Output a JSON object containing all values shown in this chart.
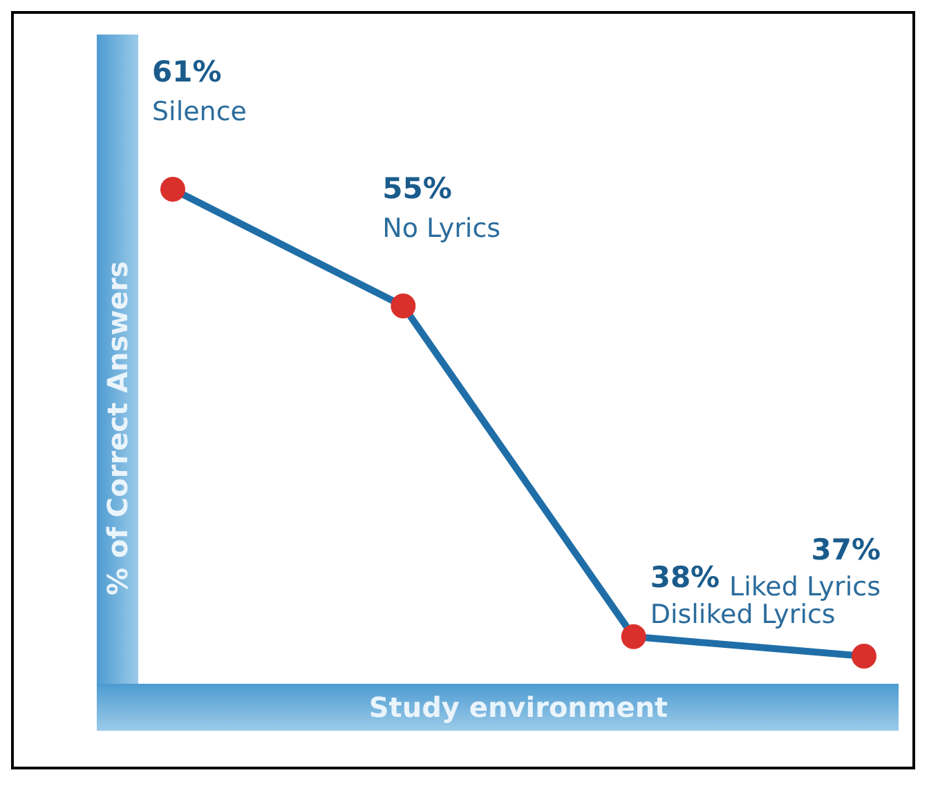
{
  "chart_data": {
    "type": "line",
    "xlabel": "Study environment",
    "ylabel": "% of Correct Answers",
    "categories": [
      "Silence",
      "No Lyrics",
      "Disliked Lyrics",
      "Liked Lyrics"
    ],
    "series": [
      {
        "color": "#1f6ea8",
        "values": [
          61,
          55,
          38,
          37
        ],
        "value_labels": [
          "61%",
          "55%",
          "38%",
          "37%"
        ]
      }
    ],
    "marker": "circle",
    "line_style": "solid",
    "grid": false,
    "legend": false
  }
}
